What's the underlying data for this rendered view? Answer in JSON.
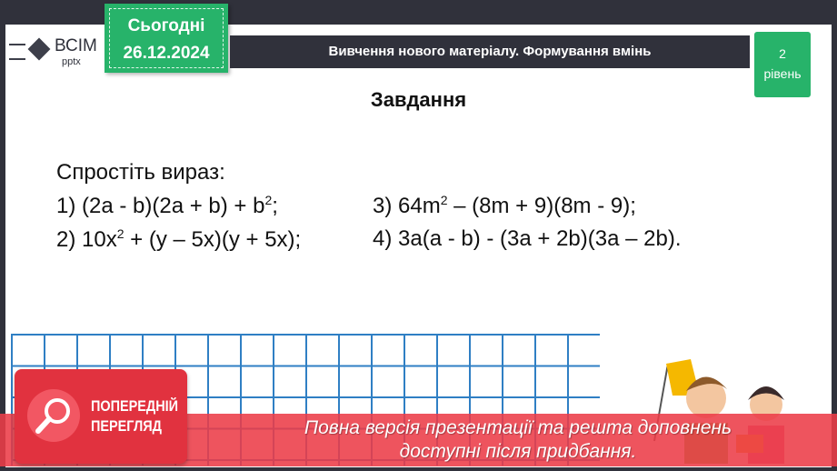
{
  "logo": {
    "name": "ВСІМ",
    "sub": "pptx"
  },
  "date": {
    "label": "Сьогодні",
    "value": "26.12.2024"
  },
  "header": {
    "title": "Вивчення нового матеріалу.  Формування вмінь"
  },
  "level": {
    "number": "2",
    "label": "рівень"
  },
  "slide_title": "Завдання",
  "prompt": "Спростіть вираз:",
  "tasks": [
    {
      "pre": "1) (2a - b)(2a + b) + b",
      "sup": "2",
      "post": ";"
    },
    {
      "pre": "2) 10x",
      "sup": "2",
      "post": " + (y – 5x)(y + 5x);"
    },
    {
      "pre": "3) 64m",
      "sup": "2",
      "post": " – (8m + 9)(8m - 9);"
    },
    {
      "pre": "4) 3a(a - b) - (3a + 2b)(3a – 2b).",
      "sup": "",
      "post": ""
    }
  ],
  "preview": {
    "line1": "ПОПЕРЕДНІЙ",
    "line2": "ПЕРЕГЛЯД"
  },
  "banner": {
    "line1": "Повна версія презентації та решта доповнень",
    "line2": "доступні після придбання."
  },
  "colors": {
    "green": "#27b36a",
    "dark": "#30313b",
    "red": "#e1323f",
    "grid": "#2f7fc4"
  }
}
